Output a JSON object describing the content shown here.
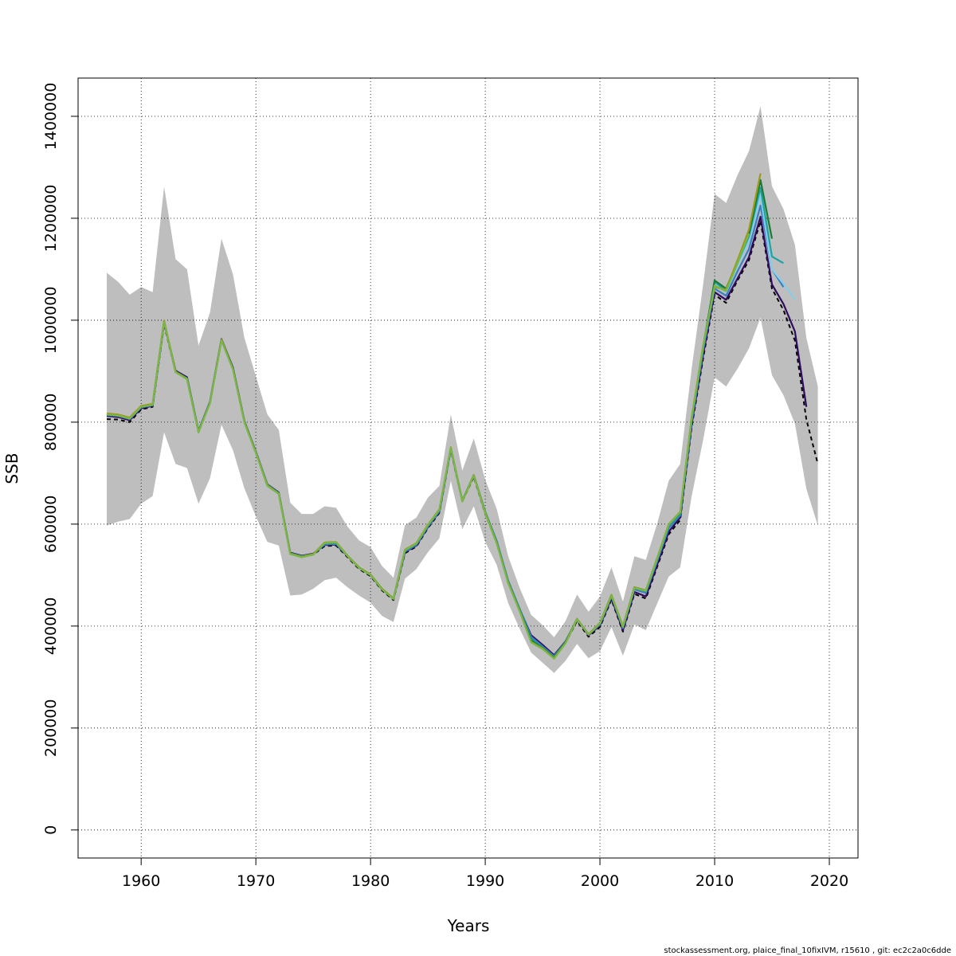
{
  "chart_data": {
    "type": "line",
    "title": "",
    "xlabel": "Years",
    "ylabel": "SSB",
    "xlim": [
      1954.5,
      2022.5
    ],
    "ylim": [
      -55000,
      1475000
    ],
    "x_ticks": [
      1960,
      1970,
      1980,
      1990,
      2000,
      2010,
      2020
    ],
    "y_ticks": [
      0,
      200000,
      400000,
      600000,
      800000,
      1000000,
      1200000,
      1400000
    ],
    "grid": true,
    "legend": "none",
    "footer": "stockassessment.org, plaice_final_10fixIVM, r15610 , git: ec2c2a0c6dde",
    "confidence_band": {
      "color": "#bebebe",
      "x": [
        1957,
        1958,
        1959,
        1960,
        1961,
        1962,
        1963,
        1964,
        1965,
        1966,
        1967,
        1968,
        1969,
        1970,
        1971,
        1972,
        1973,
        1974,
        1975,
        1976,
        1977,
        1978,
        1979,
        1980,
        1981,
        1982,
        1983,
        1984,
        1985,
        1986,
        1987,
        1988,
        1989,
        1990,
        1991,
        1992,
        1993,
        1994,
        1995,
        1996,
        1997,
        1998,
        1999,
        2000,
        2001,
        2002,
        2003,
        2004,
        2005,
        2006,
        2007,
        2008,
        2009,
        2010,
        2011,
        2012,
        2013,
        2014,
        2015,
        2016,
        2017,
        2018,
        2019
      ],
      "lower": [
        597000,
        605000,
        610000,
        640000,
        655000,
        780000,
        718000,
        710000,
        640000,
        690000,
        795000,
        745000,
        670000,
        615000,
        565000,
        558000,
        460000,
        462000,
        473000,
        490000,
        495000,
        476000,
        460000,
        446000,
        420000,
        408000,
        493000,
        512000,
        545000,
        572000,
        685000,
        590000,
        635000,
        565000,
        520000,
        445000,
        395000,
        348000,
        328000,
        308000,
        332000,
        365000,
        337000,
        351000,
        398000,
        342000,
        403000,
        392000,
        445000,
        497000,
        515000,
        655000,
        765000,
        888000,
        870000,
        905000,
        945000,
        1005000,
        892000,
        853000,
        797000,
        669000,
        597000
      ],
      "upper": [
        1093000,
        1075000,
        1050000,
        1065000,
        1055000,
        1262000,
        1120000,
        1100000,
        950000,
        1015000,
        1160000,
        1090000,
        965000,
        890000,
        815000,
        785000,
        642000,
        620000,
        620000,
        635000,
        632000,
        595000,
        568000,
        555000,
        518000,
        495000,
        598000,
        613000,
        652000,
        675000,
        815000,
        705000,
        768000,
        687000,
        630000,
        537000,
        475000,
        422000,
        402000,
        378000,
        410000,
        462000,
        428000,
        458000,
        515000,
        448000,
        537000,
        530000,
        602000,
        685000,
        718000,
        905000,
        1070000,
        1248000,
        1230000,
        1285000,
        1332000,
        1420000,
        1263000,
        1218000,
        1148000,
        965000,
        870000
      ]
    },
    "series": [
      {
        "color": "#000000",
        "dash": "dashed",
        "x": [
          1957,
          1958,
          1959,
          1960,
          1961,
          1962,
          1963,
          1964,
          1965,
          1966,
          1967,
          1968,
          1969,
          1970,
          1971,
          1972,
          1973,
          1974,
          1975,
          1976,
          1977,
          1978,
          1979,
          1980,
          1981,
          1982,
          1983,
          1984,
          1985,
          1986,
          1987,
          1988,
          1989,
          1990,
          1991,
          1992,
          1993,
          1994,
          1995,
          1996,
          1997,
          1998,
          1999,
          2000,
          2001,
          2002,
          2003,
          2004,
          2005,
          2006,
          2007,
          2008,
          2009,
          2010,
          2011,
          2012,
          2013,
          2014,
          2015,
          2016,
          2017,
          2018,
          2019
        ],
        "values": [
          806000,
          805000,
          800000,
          825000,
          830000,
          992000,
          898000,
          885000,
          780000,
          838000,
          960000,
          905000,
          800000,
          740000,
          675000,
          660000,
          542000,
          536000,
          540000,
          557000,
          558000,
          535000,
          512000,
          498000,
          470000,
          451000,
          543000,
          556000,
          592000,
          622000,
          746000,
          644000,
          693000,
          620000,
          563000,
          485000,
          430000,
          379000,
          360000,
          340000,
          367000,
          410000,
          379000,
          398000,
          452000,
          389000,
          463000,
          454000,
          517000,
          580000,
          608000,
          790000,
          925000,
          1050000,
          1034000,
          1078000,
          1118000,
          1195000,
          1062000,
          1020000,
          960000,
          805000,
          718000
        ]
      },
      {
        "color": "#2e0b5e",
        "x": [
          1957,
          1958,
          1959,
          1960,
          1961,
          1962,
          1963,
          1964,
          1965,
          1966,
          1967,
          1968,
          1969,
          1970,
          1971,
          1972,
          1973,
          1974,
          1975,
          1976,
          1977,
          1978,
          1979,
          1980,
          1981,
          1982,
          1983,
          1984,
          1985,
          1986,
          1987,
          1988,
          1989,
          1990,
          1991,
          1992,
          1993,
          1994,
          1995,
          1996,
          1997,
          1998,
          1999,
          2000,
          2001,
          2002,
          2003,
          2004,
          2005,
          2006,
          2007,
          2008,
          2009,
          2010,
          2011,
          2012,
          2013,
          2014,
          2015,
          2016,
          2017,
          2018
        ],
        "values": [
          812000,
          810000,
          804000,
          827000,
          832000,
          995000,
          901000,
          888000,
          783000,
          840000,
          963000,
          907000,
          802000,
          742000,
          678000,
          662000,
          544000,
          538000,
          542000,
          559000,
          560000,
          537000,
          514000,
          500000,
          472000,
          453000,
          545000,
          558000,
          594000,
          624000,
          748000,
          646000,
          695000,
          623000,
          566000,
          488000,
          433000,
          382000,
          363000,
          343000,
          370000,
          413000,
          382000,
          401000,
          455000,
          392000,
          467000,
          458000,
          521000,
          585000,
          613000,
          795000,
          932000,
          1055000,
          1040000,
          1082000,
          1124000,
          1203000,
          1070000,
          1032000,
          978000,
          830000
        ]
      },
      {
        "color": "#3b7ec2",
        "x": [
          1957,
          1958,
          1959,
          1960,
          1961,
          1962,
          1963,
          1964,
          1965,
          1966,
          1967,
          1968,
          1969,
          1970,
          1971,
          1972,
          1973,
          1974,
          1975,
          1976,
          1977,
          1978,
          1979,
          1980,
          1981,
          1982,
          1983,
          1984,
          1985,
          1986,
          1987,
          1988,
          1989,
          1990,
          1991,
          1992,
          1993,
          1994,
          1995,
          1996,
          1997,
          1998,
          1999,
          2000,
          2001,
          2002,
          2003,
          2004,
          2005,
          2006,
          2007,
          2008,
          2009,
          2010,
          2011,
          2012,
          2013,
          2014,
          2015,
          2016
        ],
        "values": [
          814000,
          812000,
          806000,
          829000,
          833000,
          996000,
          899000,
          886000,
          782000,
          839000,
          961000,
          905000,
          801000,
          741000,
          677000,
          661000,
          543000,
          537000,
          541000,
          560000,
          561000,
          537000,
          514000,
          500000,
          472000,
          453000,
          546000,
          559000,
          595000,
          625000,
          748000,
          646000,
          696000,
          624000,
          567000,
          489000,
          434000,
          379000,
          360000,
          341000,
          369000,
          413000,
          383000,
          403000,
          458000,
          396000,
          472000,
          465000,
          528000,
          592000,
          617000,
          800000,
          940000,
          1062000,
          1048000,
          1096000,
          1140000,
          1225000,
          1100000,
          1065000
        ]
      },
      {
        "color": "#87ceeb",
        "x": [
          2010,
          2011,
          2012,
          2013,
          2014,
          2015,
          2016,
          2017
        ],
        "values": [
          1070000,
          1055000,
          1108000,
          1155000,
          1245000,
          1100000,
          1072000,
          1040000
        ]
      },
      {
        "color": "#20a39e",
        "x": [
          1957,
          1958,
          1959,
          1960,
          1961,
          1962,
          1963,
          1964,
          1965,
          1966,
          1967,
          1968,
          1969,
          1970,
          1971,
          1972,
          1973,
          1974,
          1975,
          1976,
          1977,
          1978,
          1979,
          1980,
          1981,
          1982,
          1983,
          1984,
          1985,
          1986,
          1987,
          1988,
          1989,
          1990,
          1991,
          1992,
          1993,
          1994,
          1995,
          1996,
          1997,
          1998,
          1999,
          2000,
          2001,
          2002,
          2003,
          2004,
          2005,
          2006,
          2007,
          2008,
          2009,
          2010,
          2011,
          2012,
          2013,
          2014,
          2015,
          2016
        ],
        "values": [
          815000,
          813000,
          807000,
          830000,
          834000,
          997000,
          899000,
          886000,
          782000,
          839000,
          962000,
          905000,
          801000,
          741000,
          677000,
          661000,
          543000,
          537000,
          541000,
          562000,
          563000,
          538000,
          515000,
          501000,
          473000,
          454000,
          548000,
          561000,
          597000,
          627000,
          749000,
          646000,
          696000,
          624000,
          565000,
          487000,
          432000,
          375000,
          358000,
          339000,
          369000,
          414000,
          384000,
          405000,
          460000,
          398000,
          475000,
          468000,
          532000,
          597000,
          620000,
          805000,
          945000,
          1075000,
          1058000,
          1112000,
          1165000,
          1260000,
          1125000,
          1112000
        ]
      },
      {
        "color": "#1a7a36",
        "x": [
          1957,
          1958,
          1959,
          1960,
          1961,
          1962,
          1963,
          1964,
          1965,
          1966,
          1967,
          1968,
          1969,
          1970,
          1971,
          1972,
          1973,
          1974,
          1975,
          1976,
          1977,
          1978,
          1979,
          1980,
          1981,
          1982,
          1983,
          1984,
          1985,
          1986,
          1987,
          1988,
          1989,
          1990,
          1991,
          1992,
          1993,
          1994,
          1995,
          1996,
          1997,
          1998,
          1999,
          2000,
          2001,
          2002,
          2003,
          2004,
          2005,
          2006,
          2007,
          2008,
          2009,
          2010,
          2011,
          2012,
          2013,
          2014,
          2015
        ],
        "values": [
          816000,
          814000,
          808000,
          831000,
          835000,
          998000,
          899000,
          885000,
          781000,
          838000,
          962000,
          905000,
          800000,
          740000,
          676000,
          660000,
          542000,
          536000,
          541000,
          563000,
          564000,
          538000,
          515000,
          501000,
          473000,
          454000,
          549000,
          562000,
          598000,
          628000,
          750000,
          645000,
          696000,
          623000,
          564000,
          486000,
          431000,
          372000,
          357000,
          338000,
          368000,
          414000,
          384000,
          406000,
          461000,
          399000,
          476000,
          470000,
          534000,
          599000,
          622000,
          808000,
          948000,
          1078000,
          1062000,
          1115000,
          1170000,
          1275000,
          1160000
        ]
      },
      {
        "color": "#9a9a1a",
        "x": [
          1957,
          1958,
          1959,
          1960,
          1961,
          1962,
          1963,
          1964,
          1965,
          1966,
          1967,
          1968,
          1969,
          1970,
          1971,
          1972,
          1973,
          1974,
          1975,
          1976,
          1977,
          1978,
          1979,
          1980,
          1981,
          1982,
          1983,
          1984,
          1985,
          1986,
          1987,
          1988,
          1989,
          1990,
          1991,
          1992,
          1993,
          1994,
          1995,
          1996,
          1997,
          1998,
          1999,
          2000,
          2001,
          2002,
          2003,
          2004,
          2005,
          2006,
          2007,
          2008,
          2009,
          2010,
          2011,
          2012,
          2013,
          2014
        ],
        "values": [
          817000,
          815000,
          809000,
          832000,
          836000,
          999000,
          899000,
          885000,
          781000,
          838000,
          962000,
          904000,
          800000,
          740000,
          676000,
          660000,
          542000,
          536000,
          541000,
          564000,
          565000,
          538000,
          515000,
          501000,
          473000,
          454000,
          550000,
          563000,
          599000,
          629000,
          751000,
          645000,
          696000,
          622000,
          563000,
          485000,
          430000,
          369000,
          356000,
          337000,
          367000,
          414000,
          384000,
          406000,
          461000,
          399000,
          476000,
          470000,
          534000,
          600000,
          624000,
          810000,
          950000,
          1065000,
          1060000,
          1118000,
          1178000,
          1288000
        ]
      },
      {
        "color": "#7ab648",
        "x": [
          1957,
          1958,
          1959,
          1960,
          1961,
          1962,
          1963,
          1964,
          1965,
          1966,
          1967,
          1968,
          1969,
          1970,
          1971,
          1972,
          1973,
          1974,
          1975,
          1976,
          1977,
          1978,
          1979,
          1980,
          1981,
          1982,
          1983,
          1984,
          1985,
          1986,
          1987,
          1988,
          1989,
          1990,
          1991,
          1992,
          1993,
          1994,
          1995,
          1996,
          1997,
          1998,
          1999,
          2000,
          2001,
          2002,
          2003,
          2004,
          2005,
          2006,
          2007,
          2008,
          2009,
          2010,
          2011,
          2012,
          2013
        ],
        "values": [
          815000,
          813000,
          807000,
          830000,
          834000,
          996000,
          898000,
          884000,
          780000,
          837000,
          960000,
          903000,
          799000,
          739000,
          675000,
          659000,
          541000,
          535000,
          540000,
          563000,
          564000,
          537000,
          514000,
          500000,
          472000,
          453000,
          549000,
          562000,
          598000,
          628000,
          750000,
          644000,
          695000,
          621000,
          562000,
          484000,
          429000,
          368000,
          355000,
          336000,
          366000,
          413000,
          383000,
          405000,
          460000,
          398000,
          475000,
          469000,
          533000,
          599000,
          623000,
          808000,
          948000,
          1068000,
          1057000,
          1112000,
          1170000
        ]
      }
    ]
  }
}
